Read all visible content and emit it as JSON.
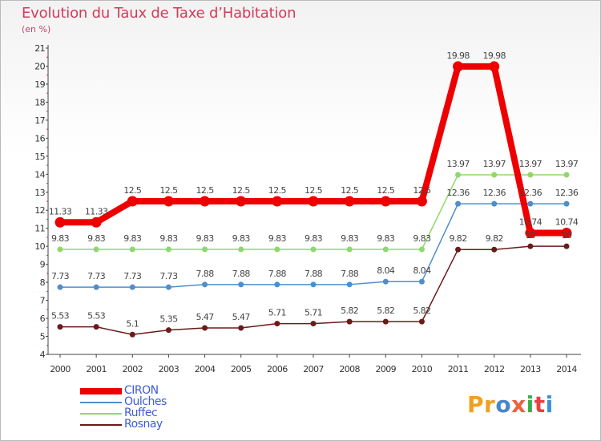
{
  "title": "Evolution du Taux de Taxe d’Habitation",
  "unit": "(en %)",
  "logo": {
    "text": "Proxiti",
    "colors": [
      "#f0a020",
      "#f0a020",
      "#4a86c8",
      "#ef6040",
      "#38b048",
      "#e94040",
      "#3b8fd6"
    ]
  },
  "chart_data": {
    "type": "line",
    "x": [
      "2000",
      "2001",
      "2002",
      "2003",
      "2004",
      "2005",
      "2006",
      "2007",
      "2008",
      "2009",
      "2010",
      "2011",
      "2012",
      "2013",
      "2014"
    ],
    "ylim": [
      4,
      21
    ],
    "yticks": [
      "4",
      "5",
      "6",
      "7",
      "8",
      "9",
      "10",
      "11",
      "12",
      "13",
      "14",
      "15",
      "16",
      "17",
      "18",
      "19",
      "20",
      "21"
    ],
    "grid": false,
    "legend_position": "bottom-left",
    "series": [
      {
        "name": "Rosnay",
        "color": "#6b1a1a",
        "values": [
          5.53,
          5.53,
          5.1,
          5.35,
          5.47,
          5.47,
          5.71,
          5.71,
          5.82,
          5.82,
          5.82,
          9.82,
          9.82,
          10,
          10
        ],
        "labels": [
          "5.53",
          "5.53",
          "5.1",
          "5.35",
          "5.47",
          "5.47",
          "5.71",
          "5.71",
          "5.82",
          "5.82",
          "5.82",
          "9.82",
          "9.82",
          "10",
          "10"
        ]
      },
      {
        "name": "Oulches",
        "color": "#4f8ec9",
        "values": [
          7.73,
          7.73,
          7.73,
          7.73,
          7.88,
          7.88,
          7.88,
          7.88,
          7.88,
          8.04,
          8.04,
          12.36,
          12.36,
          12.36,
          12.36
        ],
        "labels": [
          "7.73",
          "7.73",
          "7.73",
          "7.73",
          "7.88",
          "7.88",
          "7.88",
          "7.88",
          "7.88",
          "8.04",
          "8.04",
          "12.36",
          "12.36",
          "12.36",
          "12.36"
        ]
      },
      {
        "name": "Ruffec",
        "color": "#8fd86a",
        "values": [
          9.83,
          9.83,
          9.83,
          9.83,
          9.83,
          9.83,
          9.83,
          9.83,
          9.83,
          9.83,
          9.83,
          13.97,
          13.97,
          13.97,
          13.97
        ],
        "labels": [
          "9.83",
          "9.83",
          "9.83",
          "9.83",
          "9.83",
          "9.83",
          "9.83",
          "9.83",
          "9.83",
          "9.83",
          "9.83",
          "13.97",
          "13.97",
          "13.97",
          "13.97"
        ]
      },
      {
        "name": "CIRON",
        "color": "#ee0000",
        "values": [
          11.33,
          11.33,
          12.5,
          12.5,
          12.5,
          12.5,
          12.5,
          12.5,
          12.5,
          12.5,
          12.5,
          19.98,
          19.98,
          10.74,
          10.74
        ],
        "labels": [
          "11.33",
          "11.33",
          "12.5",
          "12.5",
          "12.5",
          "12.5",
          "12.5",
          "12.5",
          "12.5",
          "12.5",
          "12.5",
          "19.98",
          "19.98",
          "10.74",
          "10.74"
        ]
      }
    ],
    "legend": [
      {
        "name": "CIRON",
        "color": "#ee0000"
      },
      {
        "name": "Oulches",
        "color": "#4f8ec9"
      },
      {
        "name": "Ruffec",
        "color": "#8fd86a"
      },
      {
        "name": "Rosnay",
        "color": "#6b1a1a"
      }
    ]
  }
}
